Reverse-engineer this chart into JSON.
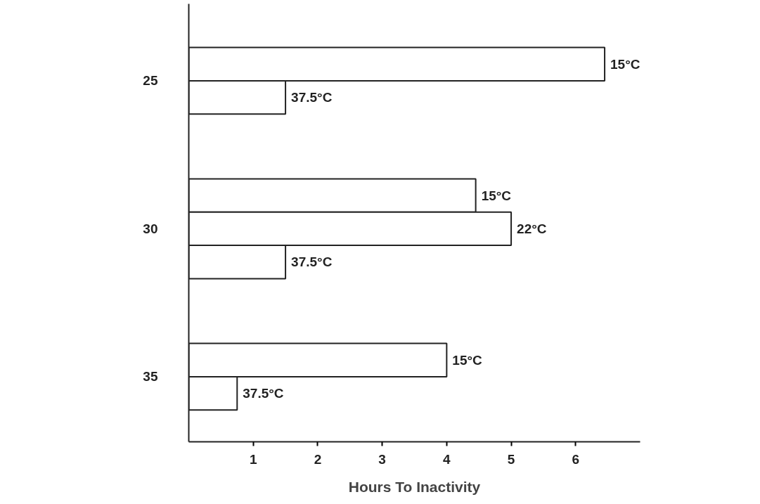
{
  "chart_data": {
    "type": "bar",
    "orientation": "horizontal",
    "xlabel": "Hours To Inactivity",
    "categories": [
      "25",
      "30",
      "35"
    ],
    "series": [
      {
        "name": "15°C",
        "color": "#ffffff",
        "values": [
          6.45,
          4.45,
          4.0
        ]
      },
      {
        "name": "22°C",
        "color": "#ffffff",
        "values": [
          null,
          5.0,
          null
        ]
      },
      {
        "name": "37.5°C",
        "color": "#ffffff",
        "values": [
          1.5,
          1.5,
          0.75
        ]
      }
    ],
    "xlim": [
      0,
      7
    ],
    "xticks": [
      1,
      2,
      3,
      4,
      5,
      6
    ],
    "grid": false
  }
}
